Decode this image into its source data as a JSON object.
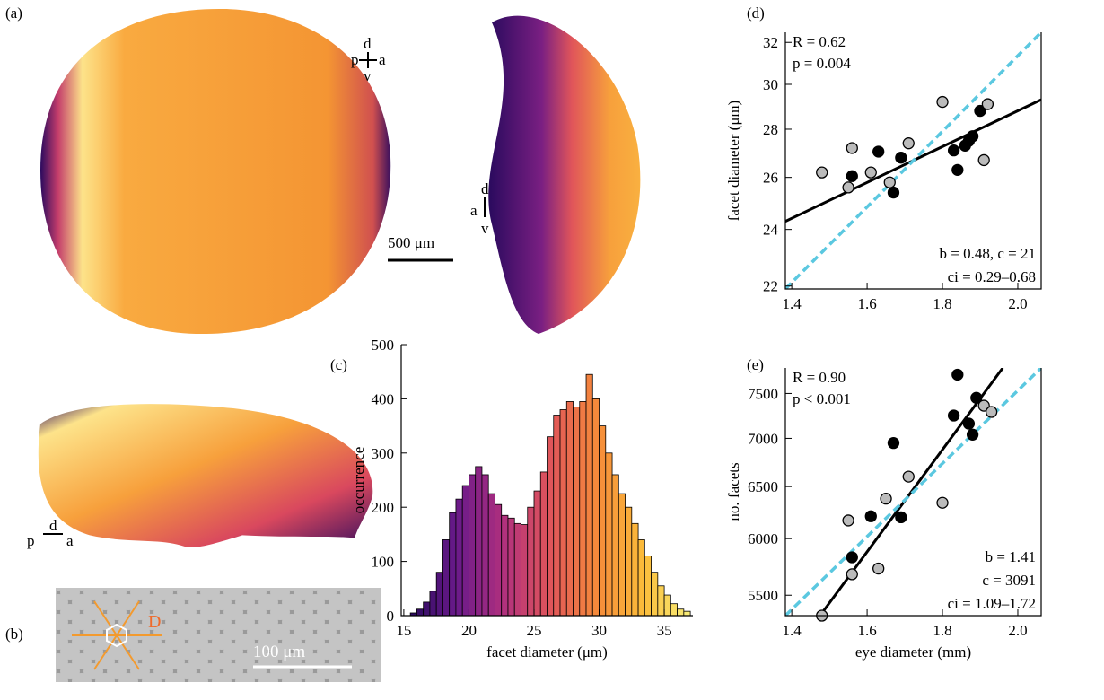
{
  "figure": {
    "panel_labels": [
      "(a)",
      "(b)",
      "(c)",
      "(d)",
      "(e)"
    ],
    "orientation_top": [
      "p",
      "d",
      "a",
      "v"
    ],
    "orientation_side": [
      "d",
      "a",
      "v"
    ],
    "orientation_bottom": [
      "p",
      "d",
      "a"
    ],
    "scale_bar_eye": "500 μm",
    "scale_bar_micrograph": "100 μm",
    "facet_label": "D"
  },
  "chart_data": [
    {
      "type": "histogram",
      "xlabel": "facet diameter (μm)",
      "ylabel": "occurrence",
      "bins": [
        15.5,
        16,
        16.5,
        17,
        17.5,
        18,
        18.5,
        19,
        19.5,
        20,
        20.5,
        21,
        21.5,
        22,
        22.5,
        23,
        23.5,
        24,
        24.5,
        25,
        25.5,
        26,
        26.5,
        27,
        27.5,
        28,
        28.5,
        29,
        29.5,
        30,
        30.5,
        31,
        31.5,
        32,
        32.5,
        33,
        33.5,
        34,
        34.5,
        35,
        35.5,
        36,
        36.5,
        37
      ],
      "values": [
        5,
        12,
        25,
        45,
        80,
        140,
        190,
        215,
        240,
        260,
        275,
        260,
        225,
        205,
        185,
        180,
        170,
        168,
        200,
        230,
        265,
        330,
        370,
        380,
        395,
        385,
        395,
        445,
        400,
        350,
        300,
        260,
        225,
        200,
        170,
        140,
        110,
        80,
        55,
        38,
        22,
        12,
        8
      ],
      "xlim": [
        14.8,
        37.2
      ],
      "ylim": [
        0,
        500
      ],
      "xticks": [
        15,
        20,
        25,
        30,
        35
      ],
      "yticks": [
        0,
        100,
        200,
        300,
        400,
        500
      ],
      "colormap": [
        "#2a0a5e",
        "#6a1a8a",
        "#b0307e",
        "#e0555a",
        "#f58a3a",
        "#fbbc3a",
        "#f8ef7a"
      ],
      "edgecolor": "#000000"
    },
    {
      "type": "scatter",
      "ylabel": "facet diameter (μm)",
      "y_scale": "log",
      "xlim": [
        1.383,
        2.062
      ],
      "ylim": [
        21.9,
        32.5
      ],
      "xticks": [
        1.4,
        1.6,
        1.8,
        {
          "value": 2,
          "label": "2.0"
        }
      ],
      "yticks": [
        22,
        24,
        26,
        28,
        30,
        32
      ],
      "series": [
        {
          "color": "#000000",
          "x": [
            1.56,
            1.63,
            1.67,
            1.69,
            1.83,
            1.84,
            1.86,
            1.87,
            1.88,
            1.9
          ],
          "values": [
            26.05,
            27.05,
            25.4,
            26.8,
            27.1,
            26.3,
            27.3,
            27.5,
            27.7,
            28.8
          ]
        },
        {
          "color": "#bbbbbb",
          "x": [
            1.48,
            1.55,
            1.56,
            1.61,
            1.66,
            1.71,
            1.8,
            1.91,
            1.92
          ],
          "values": [
            26.2,
            25.6,
            27.2,
            26.2,
            25.8,
            27.4,
            29.2,
            26.7,
            29.1
          ]
        }
      ],
      "lines": [
        {
          "color": "#000000",
          "style": "solid",
          "x": [
            1.383,
            2.062
          ],
          "values": [
            24.3,
            29.3
          ]
        },
        {
          "color": "#5bc8e0",
          "style": "dashed",
          "x": [
            1.383,
            2.062
          ],
          "values": [
            21.9,
            32.5
          ]
        }
      ],
      "annotations": [
        "R = 0.62",
        "p = 0.004",
        "b = 0.48, c = 21",
        "ci = 0.29–0.68"
      ]
    },
    {
      "type": "scatter",
      "xlabel": "eye diameter (mm)",
      "ylabel": "no. facets",
      "y_scale": "log",
      "xlim": [
        1.383,
        2.062
      ],
      "ylim": [
        5330,
        7800
      ],
      "xticks": [
        1.4,
        1.6,
        1.8,
        {
          "value": 2,
          "label": "2.0"
        }
      ],
      "yticks": [
        5500,
        6000,
        6500,
        7000,
        7500
      ],
      "series": [
        {
          "color": "#000000",
          "x": [
            1.56,
            1.61,
            1.67,
            1.69,
            1.83,
            1.84,
            1.87,
            1.88,
            1.89
          ],
          "values": [
            5830,
            6210,
            6950,
            6200,
            7250,
            7720,
            7160,
            7040,
            7450
          ]
        },
        {
          "color": "#bbbbbb",
          "x": [
            1.48,
            1.55,
            1.56,
            1.63,
            1.65,
            1.71,
            1.8,
            1.91,
            1.93
          ],
          "values": [
            5330,
            6170,
            5680,
            5730,
            6380,
            6600,
            6340,
            7360,
            7290
          ]
        }
      ],
      "lines": [
        {
          "color": "#000000",
          "style": "solid",
          "x": [
            1.475,
            1.96
          ],
          "values": [
            5330,
            7800
          ]
        },
        {
          "color": "#5bc8e0",
          "style": "dashed",
          "x": [
            1.383,
            2.062
          ],
          "values": [
            5330,
            7800
          ]
        }
      ],
      "annotations": [
        "R = 0.90",
        "p < 0.001",
        "b = 1.41",
        "c = 3091",
        "ci = 1.09–1.72"
      ]
    }
  ]
}
